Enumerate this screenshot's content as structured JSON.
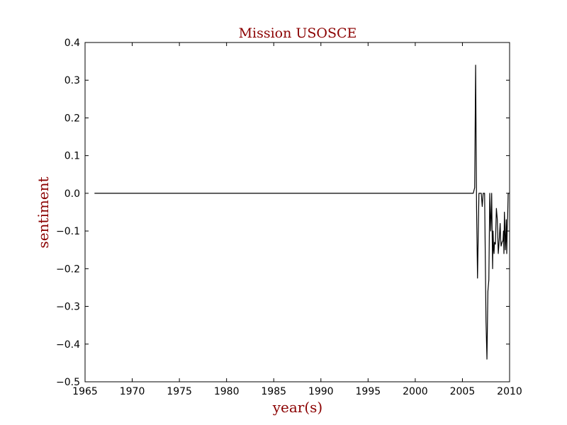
{
  "chart_data": {
    "type": "line",
    "title": "Mission USOSCE",
    "xlabel": "year(s)",
    "ylabel": "sentiment",
    "xlim": [
      1965,
      2010
    ],
    "ylim": [
      -0.5,
      0.4
    ],
    "x_ticks": [
      1965,
      1970,
      1975,
      1980,
      1985,
      1990,
      1995,
      2000,
      2005,
      2010
    ],
    "x_tick_labels": [
      "1965",
      "1970",
      "1975",
      "1980",
      "1985",
      "1990",
      "1995",
      "2000",
      "2005",
      "2010"
    ],
    "y_ticks": [
      0.4,
      0.3,
      0.2,
      0.1,
      0.0,
      -0.1,
      -0.2,
      -0.3,
      -0.4,
      -0.5
    ],
    "y_tick_labels": [
      "0.4",
      "0.3",
      "0.2",
      "0.1",
      "0.0",
      "−0.1",
      "−0.2",
      "−0.3",
      "−0.4",
      "−0.5"
    ],
    "grid": false,
    "line_color": "#000000",
    "title_color": "#8b0000",
    "series": [
      {
        "x": [
          1966.0,
          2006.0,
          2006.15,
          2006.3,
          2006.4,
          2006.5,
          2006.6,
          2006.75,
          2006.9,
          2007.0,
          2007.1,
          2007.2,
          2007.35,
          2007.5,
          2007.6,
          2007.7,
          2007.8,
          2007.9,
          2008.0,
          2008.05,
          2008.1,
          2008.15,
          2008.2,
          2008.25,
          2008.3,
          2008.35,
          2008.4,
          2008.5,
          2008.6,
          2008.7,
          2008.8,
          2008.9,
          2009.0,
          2009.05,
          2009.1,
          2009.2,
          2009.3,
          2009.35,
          2009.4,
          2009.45,
          2009.5,
          2009.55,
          2009.6,
          2009.65,
          2009.7,
          2009.75,
          2009.8,
          2009.85,
          2009.9,
          2010.0
        ],
        "y": [
          0.0,
          0.0,
          0.0,
          0.015,
          0.34,
          -0.04,
          -0.225,
          0.0,
          0.0,
          0.0,
          -0.035,
          0.0,
          0.0,
          -0.34,
          -0.44,
          -0.26,
          -0.23,
          0.0,
          -0.1,
          -0.06,
          0.0,
          -0.1,
          -0.2,
          -0.1,
          -0.145,
          -0.16,
          -0.13,
          -0.135,
          -0.04,
          -0.07,
          -0.16,
          -0.125,
          -0.08,
          -0.12,
          -0.14,
          -0.13,
          -0.125,
          -0.1,
          -0.16,
          -0.05,
          -0.09,
          -0.15,
          -0.12,
          -0.07,
          -0.16,
          -0.09,
          -0.06,
          0.0,
          0.0,
          0.0
        ]
      }
    ]
  }
}
